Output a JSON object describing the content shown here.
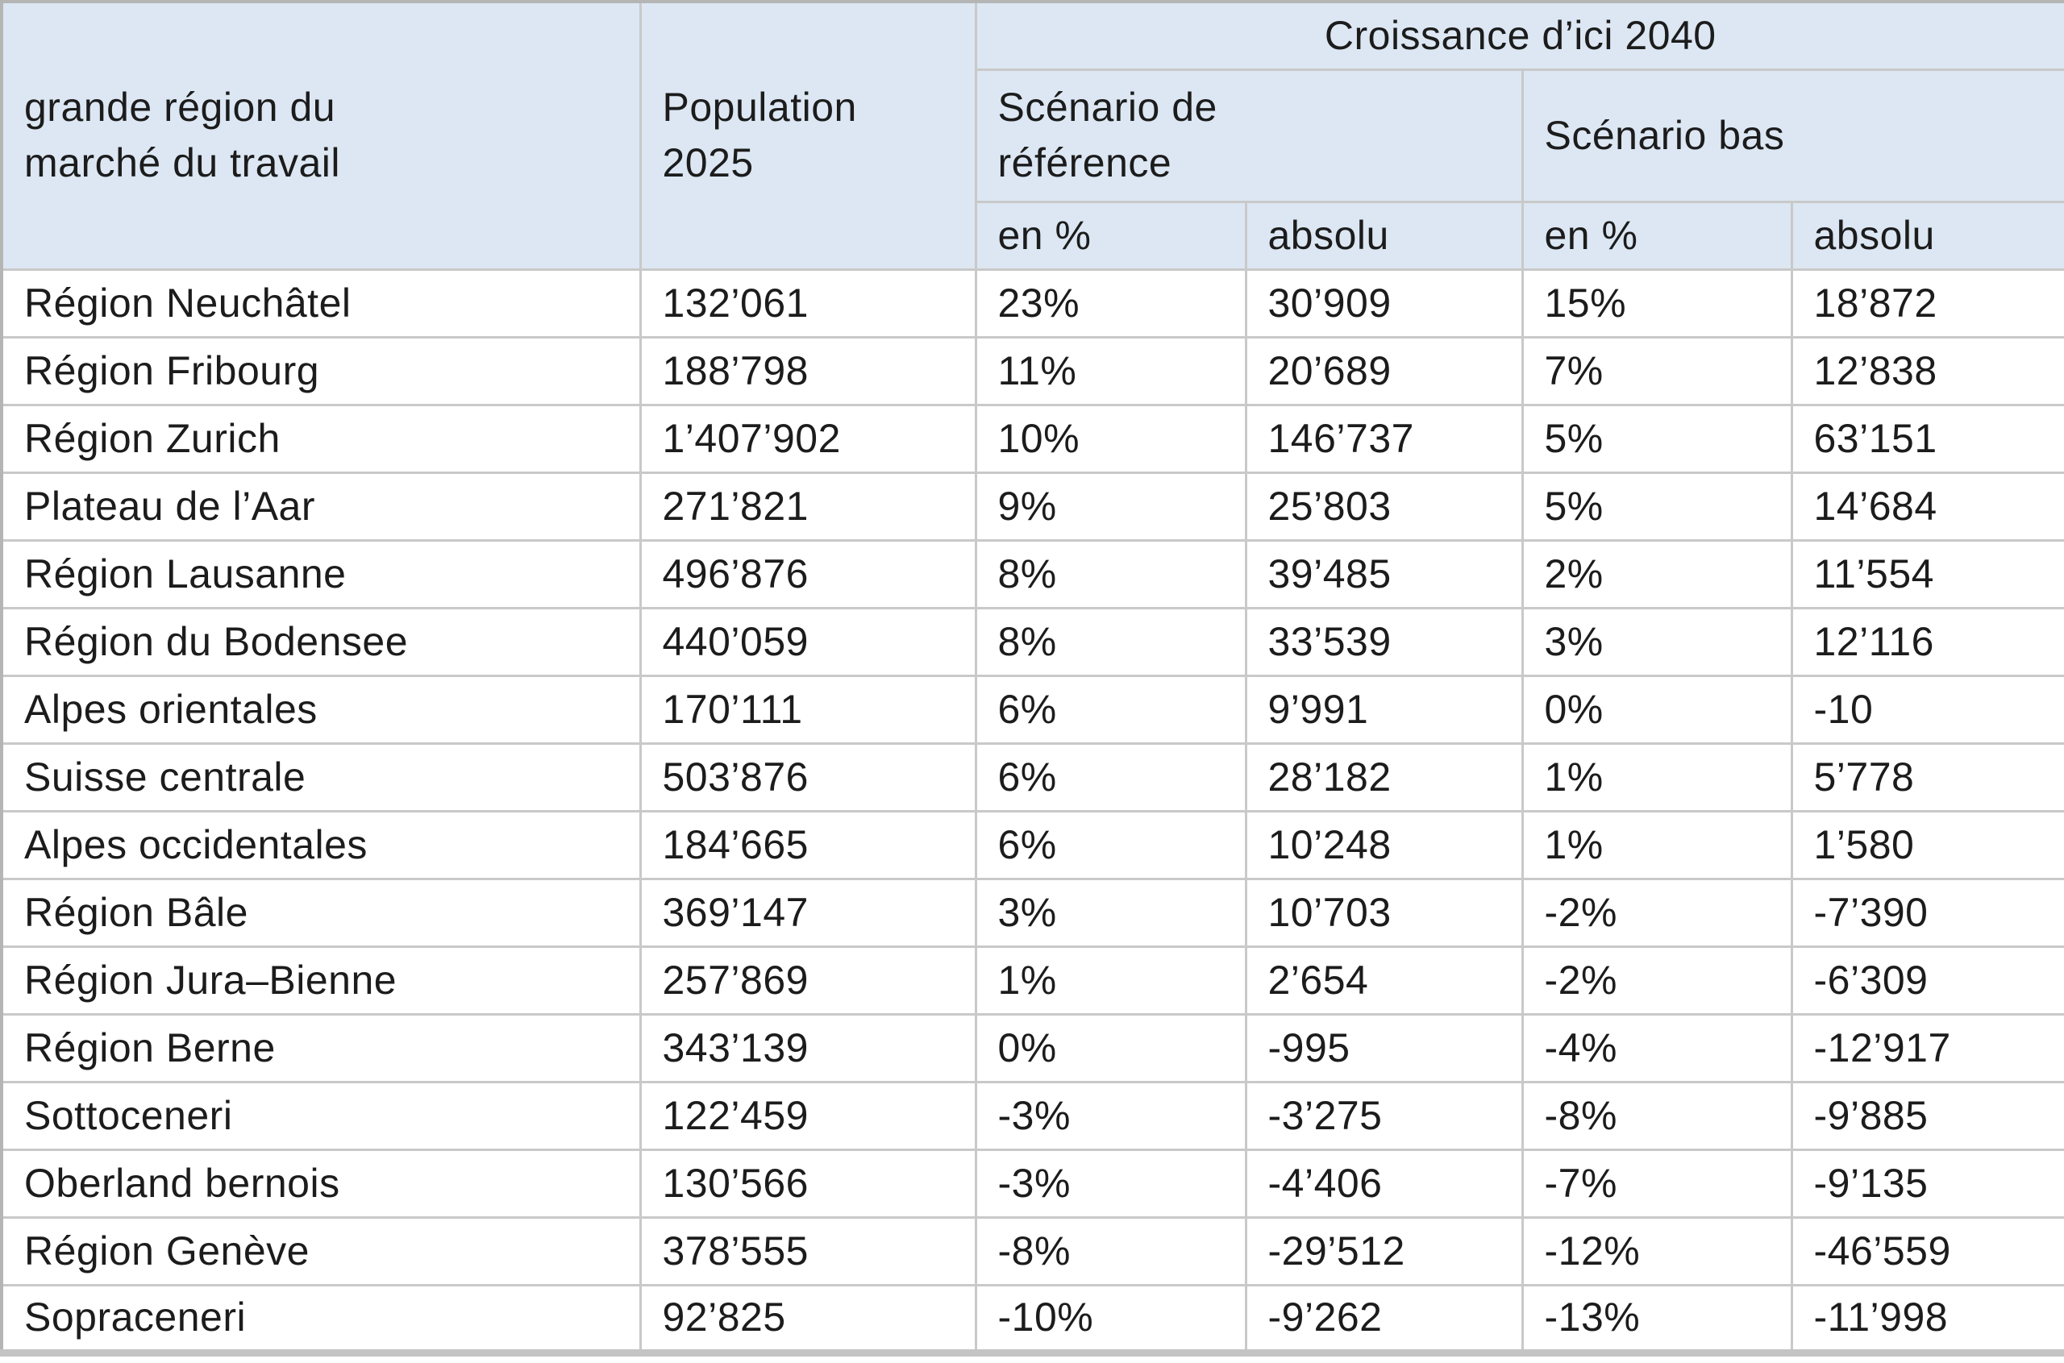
{
  "chart_data": {
    "type": "table",
    "title": "",
    "header": {
      "region": "grande région du\nmarché du travail",
      "population": "Population\n2025",
      "croissance": "Croissance d’ici 2040",
      "scenario_reference": "Scénario de\nréférence",
      "scenario_bas": "Scénario bas",
      "ref_en_pct": "en %",
      "ref_absolu": "absolu",
      "bas_en_pct": "en %",
      "bas_absolu": "absolu"
    },
    "rows": [
      [
        "Région Neuchâtel",
        "132’061",
        "23%",
        "30’909",
        "15%",
        "18’872"
      ],
      [
        "Région Fribourg",
        "188’798",
        "11%",
        "20’689",
        "7%",
        "12’838"
      ],
      [
        "Région Zurich",
        "1’407’902",
        "10%",
        "146’737",
        "5%",
        "63’151"
      ],
      [
        "Plateau de l’Aar",
        "271’821",
        "9%",
        "25’803",
        "5%",
        "14’684"
      ],
      [
        "Région Lausanne",
        "496’876",
        "8%",
        "39’485",
        "2%",
        "11’554"
      ],
      [
        "Région du Bodensee",
        "440’059",
        "8%",
        "33’539",
        "3%",
        "12’116"
      ],
      [
        "Alpes orientales",
        "170’111",
        "6%",
        "9’991",
        "0%",
        "-10"
      ],
      [
        "Suisse centrale",
        "503’876",
        "6%",
        "28’182",
        "1%",
        "5’778"
      ],
      [
        "Alpes occidentales",
        "184’665",
        "6%",
        "10’248",
        "1%",
        "1’580"
      ],
      [
        "Région Bâle",
        "369’147",
        "3%",
        "10’703",
        "-2%",
        "-7’390"
      ],
      [
        "Région Jura–Bienne",
        "257’869",
        "1%",
        "2’654",
        "-2%",
        "-6’309"
      ],
      [
        "Région Berne",
        "343’139",
        "0%",
        "-995",
        "-4%",
        "-12’917"
      ],
      [
        "Sottoceneri",
        "122’459",
        "-3%",
        "-3’275",
        "-8%",
        "-9’885"
      ],
      [
        "Oberland bernois",
        "130’566",
        "-3%",
        "-4’406",
        "-7%",
        "-9’135"
      ],
      [
        "Région Genève",
        "378’555",
        "-8%",
        "-29’512",
        "-12%",
        "-46’559"
      ],
      [
        "Sopraceneri",
        "92’825",
        "-10%",
        "-9’262",
        "-13%",
        "-11’998"
      ]
    ],
    "layout": {
      "grid": true,
      "legend_position": "none"
    }
  },
  "colors": {
    "header_bg": "#dce7f3",
    "row_bg": "#ffffff",
    "grid_border": "#c9c9c9",
    "outer_border": "#b5b5b5",
    "text": "#1c1c1c"
  }
}
